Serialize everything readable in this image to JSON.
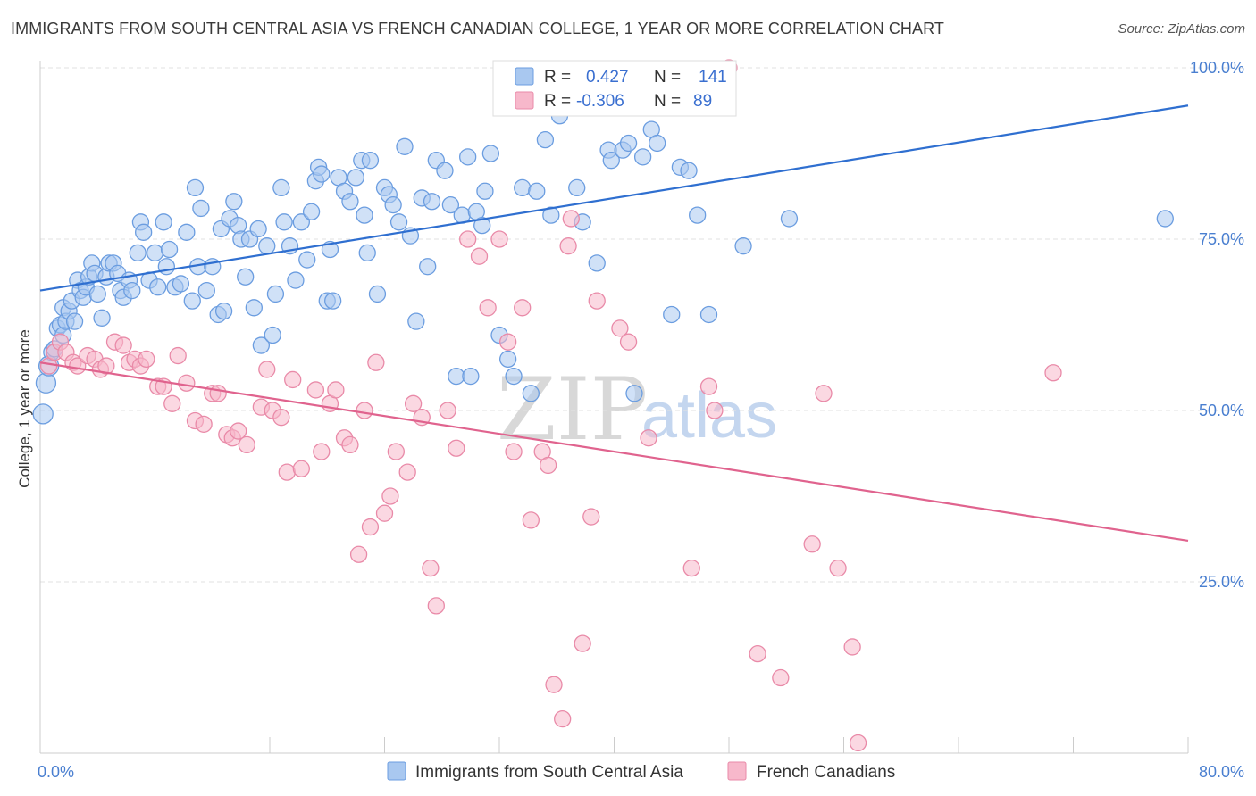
{
  "header": {
    "title": "IMMIGRANTS FROM SOUTH CENTRAL ASIA VS FRENCH CANADIAN COLLEGE, 1 YEAR OR MORE CORRELATION CHART",
    "source": "Source: ZipAtlas.com"
  },
  "watermark": {
    "zip": "ZIP",
    "atlas": "atlas"
  },
  "legend_box": {
    "rows": [
      {
        "r_label": "R =",
        "r_value": "0.427",
        "n_label": "N =",
        "n_value": "141",
        "color": "#a9c8f0",
        "stroke": "#6b9de0"
      },
      {
        "r_label": "R =",
        "r_value": "-0.306",
        "n_label": "N =",
        "n_value": "89",
        "color": "#f7b8cb",
        "stroke": "#e98aa8"
      }
    ]
  },
  "bottom_legend": {
    "items": [
      {
        "label": "Immigrants from South Central Asia",
        "color": "#a9c8f0",
        "stroke": "#6b9de0"
      },
      {
        "label": "French Canadians",
        "color": "#f7b8cb",
        "stroke": "#e98aa8"
      }
    ]
  },
  "chart_data": {
    "type": "scatter",
    "title": "IMMIGRANTS FROM SOUTH CENTRAL ASIA VS FRENCH CANADIAN COLLEGE, 1 YEAR OR MORE CORRELATION CHART",
    "xlabel": "",
    "ylabel": "College, 1 year or more",
    "xlim": [
      0,
      80
    ],
    "ylim": [
      0,
      100
    ],
    "x_tick_labels": [
      "0.0%",
      "80.0%"
    ],
    "y_tick_labels": [
      "25.0%",
      "50.0%",
      "75.0%",
      "100.0%"
    ],
    "y_ticks": [
      25,
      50,
      75,
      100
    ],
    "grid": true,
    "legend_position": "top-center",
    "series": [
      {
        "name": "Immigrants from South Central Asia",
        "color": "#6b9de0",
        "fill": "#a9c8f0",
        "trend": {
          "x": [
            0,
            80
          ],
          "y": [
            67.5,
            94.5
          ],
          "color": "#2f6fd0"
        },
        "points": [
          [
            0.2,
            49.5
          ],
          [
            0.4,
            54
          ],
          [
            0.6,
            56.5
          ],
          [
            0.8,
            58.5
          ],
          [
            1,
            59
          ],
          [
            1.2,
            62
          ],
          [
            1.4,
            62.5
          ],
          [
            1.6,
            65
          ],
          [
            1.6,
            61
          ],
          [
            1.8,
            63
          ],
          [
            2,
            64.5
          ],
          [
            2.2,
            66
          ],
          [
            2.4,
            63
          ],
          [
            2.6,
            69
          ],
          [
            2.8,
            67.5
          ],
          [
            3,
            66.5
          ],
          [
            3.2,
            68
          ],
          [
            3.4,
            69.5
          ],
          [
            3.6,
            71.5
          ],
          [
            3.8,
            70
          ],
          [
            4,
            67
          ],
          [
            4.3,
            63.5
          ],
          [
            4.6,
            69.5
          ],
          [
            4.8,
            71.5
          ],
          [
            5.1,
            71.5
          ],
          [
            5.4,
            70
          ],
          [
            5.6,
            67.5
          ],
          [
            5.8,
            66.5
          ],
          [
            6.2,
            69
          ],
          [
            6.4,
            67.5
          ],
          [
            6.8,
            73
          ],
          [
            7,
            77.5
          ],
          [
            7.2,
            76
          ],
          [
            7.6,
            69
          ],
          [
            8,
            73
          ],
          [
            8.2,
            68
          ],
          [
            8.6,
            77.5
          ],
          [
            8.8,
            71
          ],
          [
            9,
            73.5
          ],
          [
            9.4,
            68
          ],
          [
            9.8,
            68.5
          ],
          [
            10.2,
            76
          ],
          [
            10.6,
            66
          ],
          [
            10.8,
            82.5
          ],
          [
            11,
            71
          ],
          [
            11.2,
            79.5
          ],
          [
            11.6,
            67.5
          ],
          [
            12,
            71
          ],
          [
            12.4,
            64
          ],
          [
            12.6,
            76.5
          ],
          [
            12.8,
            64.5
          ],
          [
            13.2,
            78
          ],
          [
            13.5,
            80.5
          ],
          [
            13.8,
            77
          ],
          [
            14,
            75
          ],
          [
            14.3,
            69.5
          ],
          [
            14.6,
            75
          ],
          [
            14.9,
            65
          ],
          [
            15.2,
            76.5
          ],
          [
            15.4,
            59.5
          ],
          [
            15.8,
            74
          ],
          [
            16.2,
            61
          ],
          [
            16.4,
            67
          ],
          [
            16.8,
            82.5
          ],
          [
            17,
            77.5
          ],
          [
            17.4,
            74
          ],
          [
            17.8,
            69
          ],
          [
            18.2,
            77.5
          ],
          [
            18.6,
            72
          ],
          [
            18.9,
            79
          ],
          [
            19.2,
            83.5
          ],
          [
            19.4,
            85.5
          ],
          [
            19.6,
            84.5
          ],
          [
            20,
            66
          ],
          [
            20.2,
            73.5
          ],
          [
            20.4,
            66
          ],
          [
            20.8,
            84
          ],
          [
            21.2,
            82
          ],
          [
            21.6,
            80.5
          ],
          [
            22,
            84
          ],
          [
            22.4,
            86.5
          ],
          [
            22.6,
            78.5
          ],
          [
            22.8,
            73
          ],
          [
            23,
            86.5
          ],
          [
            23.5,
            67
          ],
          [
            24,
            82.5
          ],
          [
            24.3,
            81.5
          ],
          [
            24.6,
            80
          ],
          [
            25,
            77.5
          ],
          [
            25.4,
            88.5
          ],
          [
            25.8,
            75.5
          ],
          [
            26.2,
            63
          ],
          [
            26.6,
            81
          ],
          [
            27,
            71
          ],
          [
            27.3,
            80.5
          ],
          [
            27.6,
            86.5
          ],
          [
            28.2,
            85
          ],
          [
            28.6,
            80
          ],
          [
            29,
            55
          ],
          [
            29.4,
            78.5
          ],
          [
            29.8,
            87
          ],
          [
            30,
            55
          ],
          [
            30.4,
            79
          ],
          [
            30.8,
            77
          ],
          [
            31,
            82
          ],
          [
            31.4,
            87.5
          ],
          [
            32,
            61
          ],
          [
            32.6,
            57.5
          ],
          [
            33,
            55
          ],
          [
            33.6,
            82.5
          ],
          [
            34.2,
            52.5
          ],
          [
            34.6,
            82
          ],
          [
            35.2,
            89.5
          ],
          [
            35.6,
            78.5
          ],
          [
            36.2,
            93
          ],
          [
            37.4,
            82.5
          ],
          [
            37.8,
            77.5
          ],
          [
            38.8,
            71.5
          ],
          [
            39.6,
            88
          ],
          [
            39.8,
            86.5
          ],
          [
            40.6,
            88
          ],
          [
            41,
            89
          ],
          [
            41.4,
            52.5
          ],
          [
            42,
            87
          ],
          [
            42.6,
            91
          ],
          [
            43,
            89
          ],
          [
            44,
            64
          ],
          [
            44.6,
            85.5
          ],
          [
            45.2,
            85
          ],
          [
            45.8,
            78.5
          ],
          [
            46.6,
            64
          ],
          [
            49,
            74
          ],
          [
            52.2,
            78
          ],
          [
            78.4,
            78
          ]
        ]
      },
      {
        "name": "French Canadians",
        "color": "#e98aa8",
        "fill": "#f7b8cb",
        "trend": {
          "x": [
            0,
            80
          ],
          "y": [
            57,
            31
          ],
          "color": "#e0638e"
        },
        "points": [
          [
            0.6,
            56.5
          ],
          [
            1,
            58.5
          ],
          [
            1.4,
            60
          ],
          [
            1.8,
            58.5
          ],
          [
            2.3,
            57
          ],
          [
            2.6,
            56.5
          ],
          [
            3.3,
            58
          ],
          [
            3.8,
            57.5
          ],
          [
            4.2,
            56
          ],
          [
            4.6,
            56.5
          ],
          [
            5.2,
            60
          ],
          [
            5.8,
            59.5
          ],
          [
            6.2,
            57
          ],
          [
            6.6,
            57.5
          ],
          [
            7,
            56.5
          ],
          [
            7.4,
            57.5
          ],
          [
            8.2,
            53.5
          ],
          [
            8.6,
            53.5
          ],
          [
            9.2,
            51
          ],
          [
            9.6,
            58
          ],
          [
            10.2,
            54
          ],
          [
            10.8,
            48.5
          ],
          [
            11.4,
            48
          ],
          [
            12,
            52.5
          ],
          [
            12.4,
            52.5
          ],
          [
            13,
            46.5
          ],
          [
            13.4,
            46
          ],
          [
            13.8,
            47
          ],
          [
            14.4,
            45
          ],
          [
            15.4,
            50.5
          ],
          [
            15.8,
            56
          ],
          [
            16.2,
            50
          ],
          [
            16.8,
            49
          ],
          [
            17.2,
            41
          ],
          [
            17.6,
            54.5
          ],
          [
            18.2,
            41.5
          ],
          [
            19.2,
            53
          ],
          [
            19.6,
            44
          ],
          [
            20.2,
            51
          ],
          [
            20.6,
            53
          ],
          [
            21.2,
            46
          ],
          [
            21.6,
            45
          ],
          [
            22.2,
            29
          ],
          [
            22.6,
            50
          ],
          [
            23,
            33
          ],
          [
            23.4,
            57
          ],
          [
            24,
            35
          ],
          [
            24.4,
            37.5
          ],
          [
            24.8,
            44
          ],
          [
            25.6,
            41
          ],
          [
            26,
            51
          ],
          [
            26.6,
            49
          ],
          [
            27.2,
            27
          ],
          [
            27.6,
            21.5
          ],
          [
            28.4,
            50
          ],
          [
            29,
            44.5
          ],
          [
            29.8,
            75
          ],
          [
            30.6,
            72.5
          ],
          [
            31.2,
            65
          ],
          [
            32,
            75
          ],
          [
            32.6,
            60
          ],
          [
            33,
            44
          ],
          [
            33.6,
            65
          ],
          [
            34.2,
            34
          ],
          [
            35,
            44
          ],
          [
            35.4,
            42
          ],
          [
            35.8,
            10
          ],
          [
            36.4,
            5
          ],
          [
            36.8,
            74
          ],
          [
            37,
            78
          ],
          [
            37.8,
            16
          ],
          [
            38.4,
            34.5
          ],
          [
            38.8,
            66
          ],
          [
            40.4,
            62
          ],
          [
            41,
            60
          ],
          [
            42.4,
            46
          ],
          [
            45.4,
            27
          ],
          [
            46.6,
            53.5
          ],
          [
            47,
            50
          ],
          [
            48,
            100
          ],
          [
            50,
            14.5
          ],
          [
            51.6,
            11
          ],
          [
            53.8,
            30.5
          ],
          [
            54.6,
            52.5
          ],
          [
            55.6,
            27
          ],
          [
            56.6,
            15.5
          ],
          [
            57,
            1.5
          ],
          [
            70.6,
            55.5
          ]
        ]
      }
    ]
  }
}
